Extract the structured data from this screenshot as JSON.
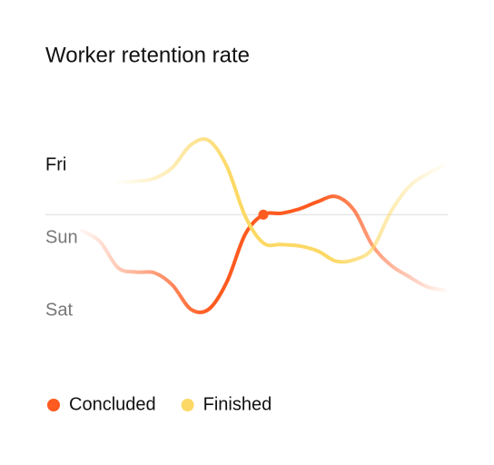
{
  "chart_data": {
    "type": "line",
    "title": "Worker retention rate",
    "categories": [
      null,
      null,
      null,
      null,
      null,
      null,
      null,
      null,
      null,
      null,
      null,
      null,
      null,
      null,
      null,
      null,
      null,
      null,
      null,
      null,
      null
    ],
    "ylim": [
      0.4,
      3.9
    ],
    "yticks": [
      {
        "value": 3,
        "label": "Fri"
      },
      {
        "value": 2,
        "label": "Sun"
      },
      {
        "value": 1,
        "label": "Sat"
      }
    ],
    "series": [
      {
        "name": "Concluded",
        "color": "#ff5a1f",
        "values": [
          2.1,
          1.95,
          1.59,
          1.53,
          1.52,
          1.35,
          1.02,
          1.02,
          1.4,
          2.05,
          2.32,
          2.34,
          2.4,
          2.5,
          2.57,
          2.38,
          1.9,
          1.63,
          1.47,
          1.33,
          1.28
        ]
      },
      {
        "name": "Finished",
        "color": "#fcd966",
        "values": [
          null,
          null,
          2.77,
          2.78,
          2.82,
          2.97,
          3.28,
          3.34,
          2.98,
          2.3,
          1.93,
          1.91,
          1.89,
          1.82,
          1.68,
          1.7,
          1.85,
          2.35,
          2.7,
          2.88,
          3.0
        ]
      }
    ]
  }
}
